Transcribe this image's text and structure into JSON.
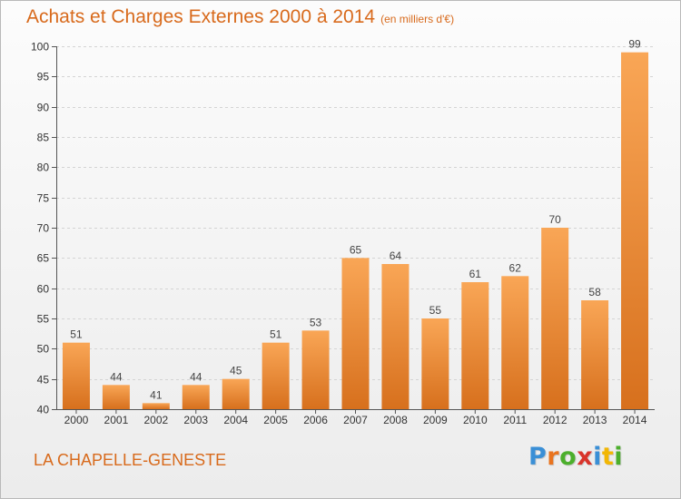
{
  "title": "Achats et Charges Externes 2000 à 2014",
  "subtitle": "(en milliers d'€)",
  "place": "LA CHAPELLE-GENESTE",
  "logo": {
    "text": "Proxiti",
    "letter_colors": [
      "#3a8fd6",
      "#e9741f",
      "#4caf2c",
      "#d9342b",
      "#3a8fd6",
      "#f2b705",
      "#4caf2c"
    ]
  },
  "colors": {
    "title": "#d86a1c",
    "bar_light": "#f9a656",
    "bar_dark": "#d7701d",
    "grid": "#d4d4d4"
  },
  "chart_data": {
    "type": "bar",
    "title": "Achats et Charges Externes 2000 à 2014",
    "subtitle": "(en milliers d'€)",
    "categories": [
      "2000",
      "2001",
      "2002",
      "2003",
      "2004",
      "2005",
      "2006",
      "2007",
      "2008",
      "2009",
      "2010",
      "2011",
      "2012",
      "2013",
      "2014"
    ],
    "values": [
      51,
      44,
      41,
      44,
      45,
      51,
      53,
      65,
      64,
      55,
      61,
      62,
      70,
      58,
      99
    ],
    "data_labels": [
      "51",
      "44",
      "41",
      "44",
      "45",
      "51",
      "53",
      "65",
      "64",
      "55",
      "61",
      "62",
      "70",
      "58",
      "99"
    ],
    "ylim": [
      40,
      100
    ],
    "yticks": [
      40,
      45,
      50,
      55,
      60,
      65,
      70,
      75,
      80,
      85,
      90,
      95,
      100
    ],
    "grid": true,
    "legend": "none"
  }
}
